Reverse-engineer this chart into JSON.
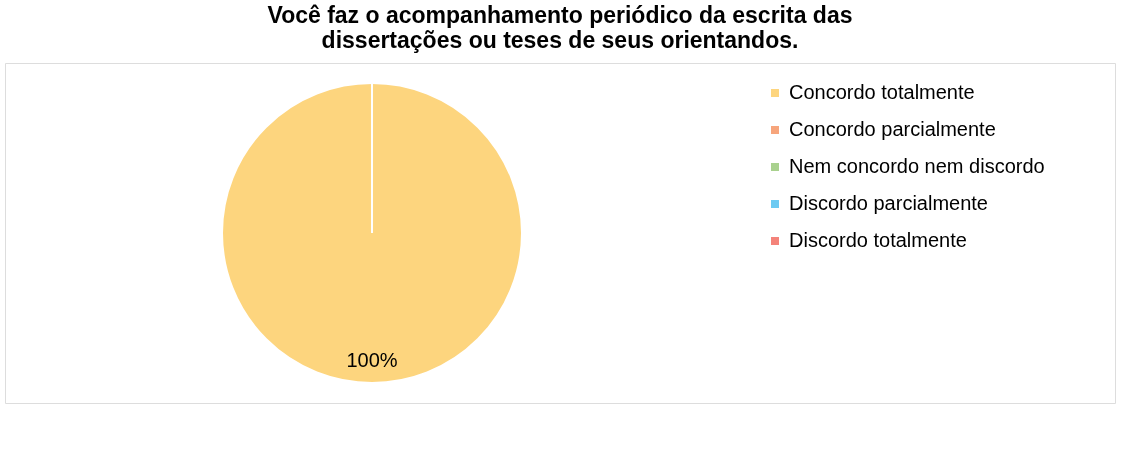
{
  "chart_data": {
    "type": "pie",
    "title": "Você faz o acompanhamento periódico da escrita das dissertações ou teses de seus orientandos.",
    "categories": [
      "Concordo totalmente",
      "Concordo parcialmente",
      "Nem concordo nem discordo",
      "Discordo parcialmente",
      "Discordo totalmente"
    ],
    "values": [
      100,
      0,
      0,
      0,
      0
    ],
    "colors": [
      "#fdd57e",
      "#f7a57c",
      "#a9d18e",
      "#6ccaf2",
      "#f4837a"
    ],
    "value_labels": [
      "100%",
      null,
      null,
      null,
      null
    ],
    "legend": "right"
  }
}
